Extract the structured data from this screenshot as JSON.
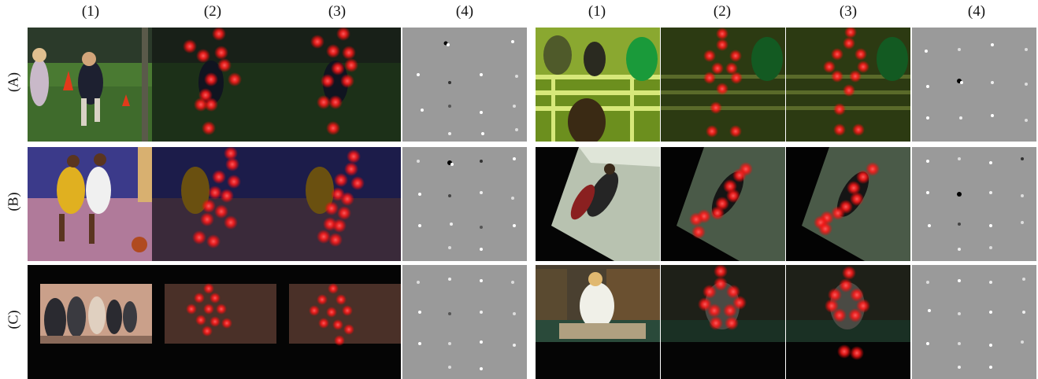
{
  "column_labels": [
    "(1)",
    "(2)",
    "(3)",
    "(4)",
    "(1)",
    "(2)",
    "(3)",
    "(4)"
  ],
  "row_labels": [
    "(A)",
    "(B)",
    "(C)"
  ],
  "palette": {
    "grass": "#3f6b2c",
    "court": "#3b3a8a",
    "floor": "#8a5a7a",
    "rodeo": "#6c8f1e",
    "dark": "#050505",
    "library": "#4a4030",
    "heatmap_red": "#ff2a2a",
    "gray_panel": "#9a9a9a"
  }
}
